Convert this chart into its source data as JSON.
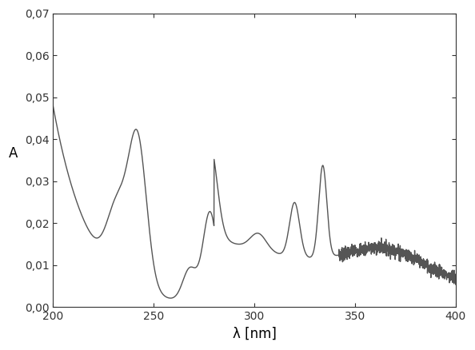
{
  "title": "",
  "xlabel": "λ [nm]",
  "ylabel": "A",
  "xlim": [
    200,
    400
  ],
  "ylim": [
    0.0,
    0.07
  ],
  "xticks": [
    200,
    250,
    300,
    350,
    400
  ],
  "yticks": [
    0.0,
    0.01,
    0.02,
    0.03,
    0.04,
    0.05,
    0.06,
    0.07
  ],
  "line_color": "#555555",
  "line_width": 1.0,
  "background_color": "#ffffff"
}
